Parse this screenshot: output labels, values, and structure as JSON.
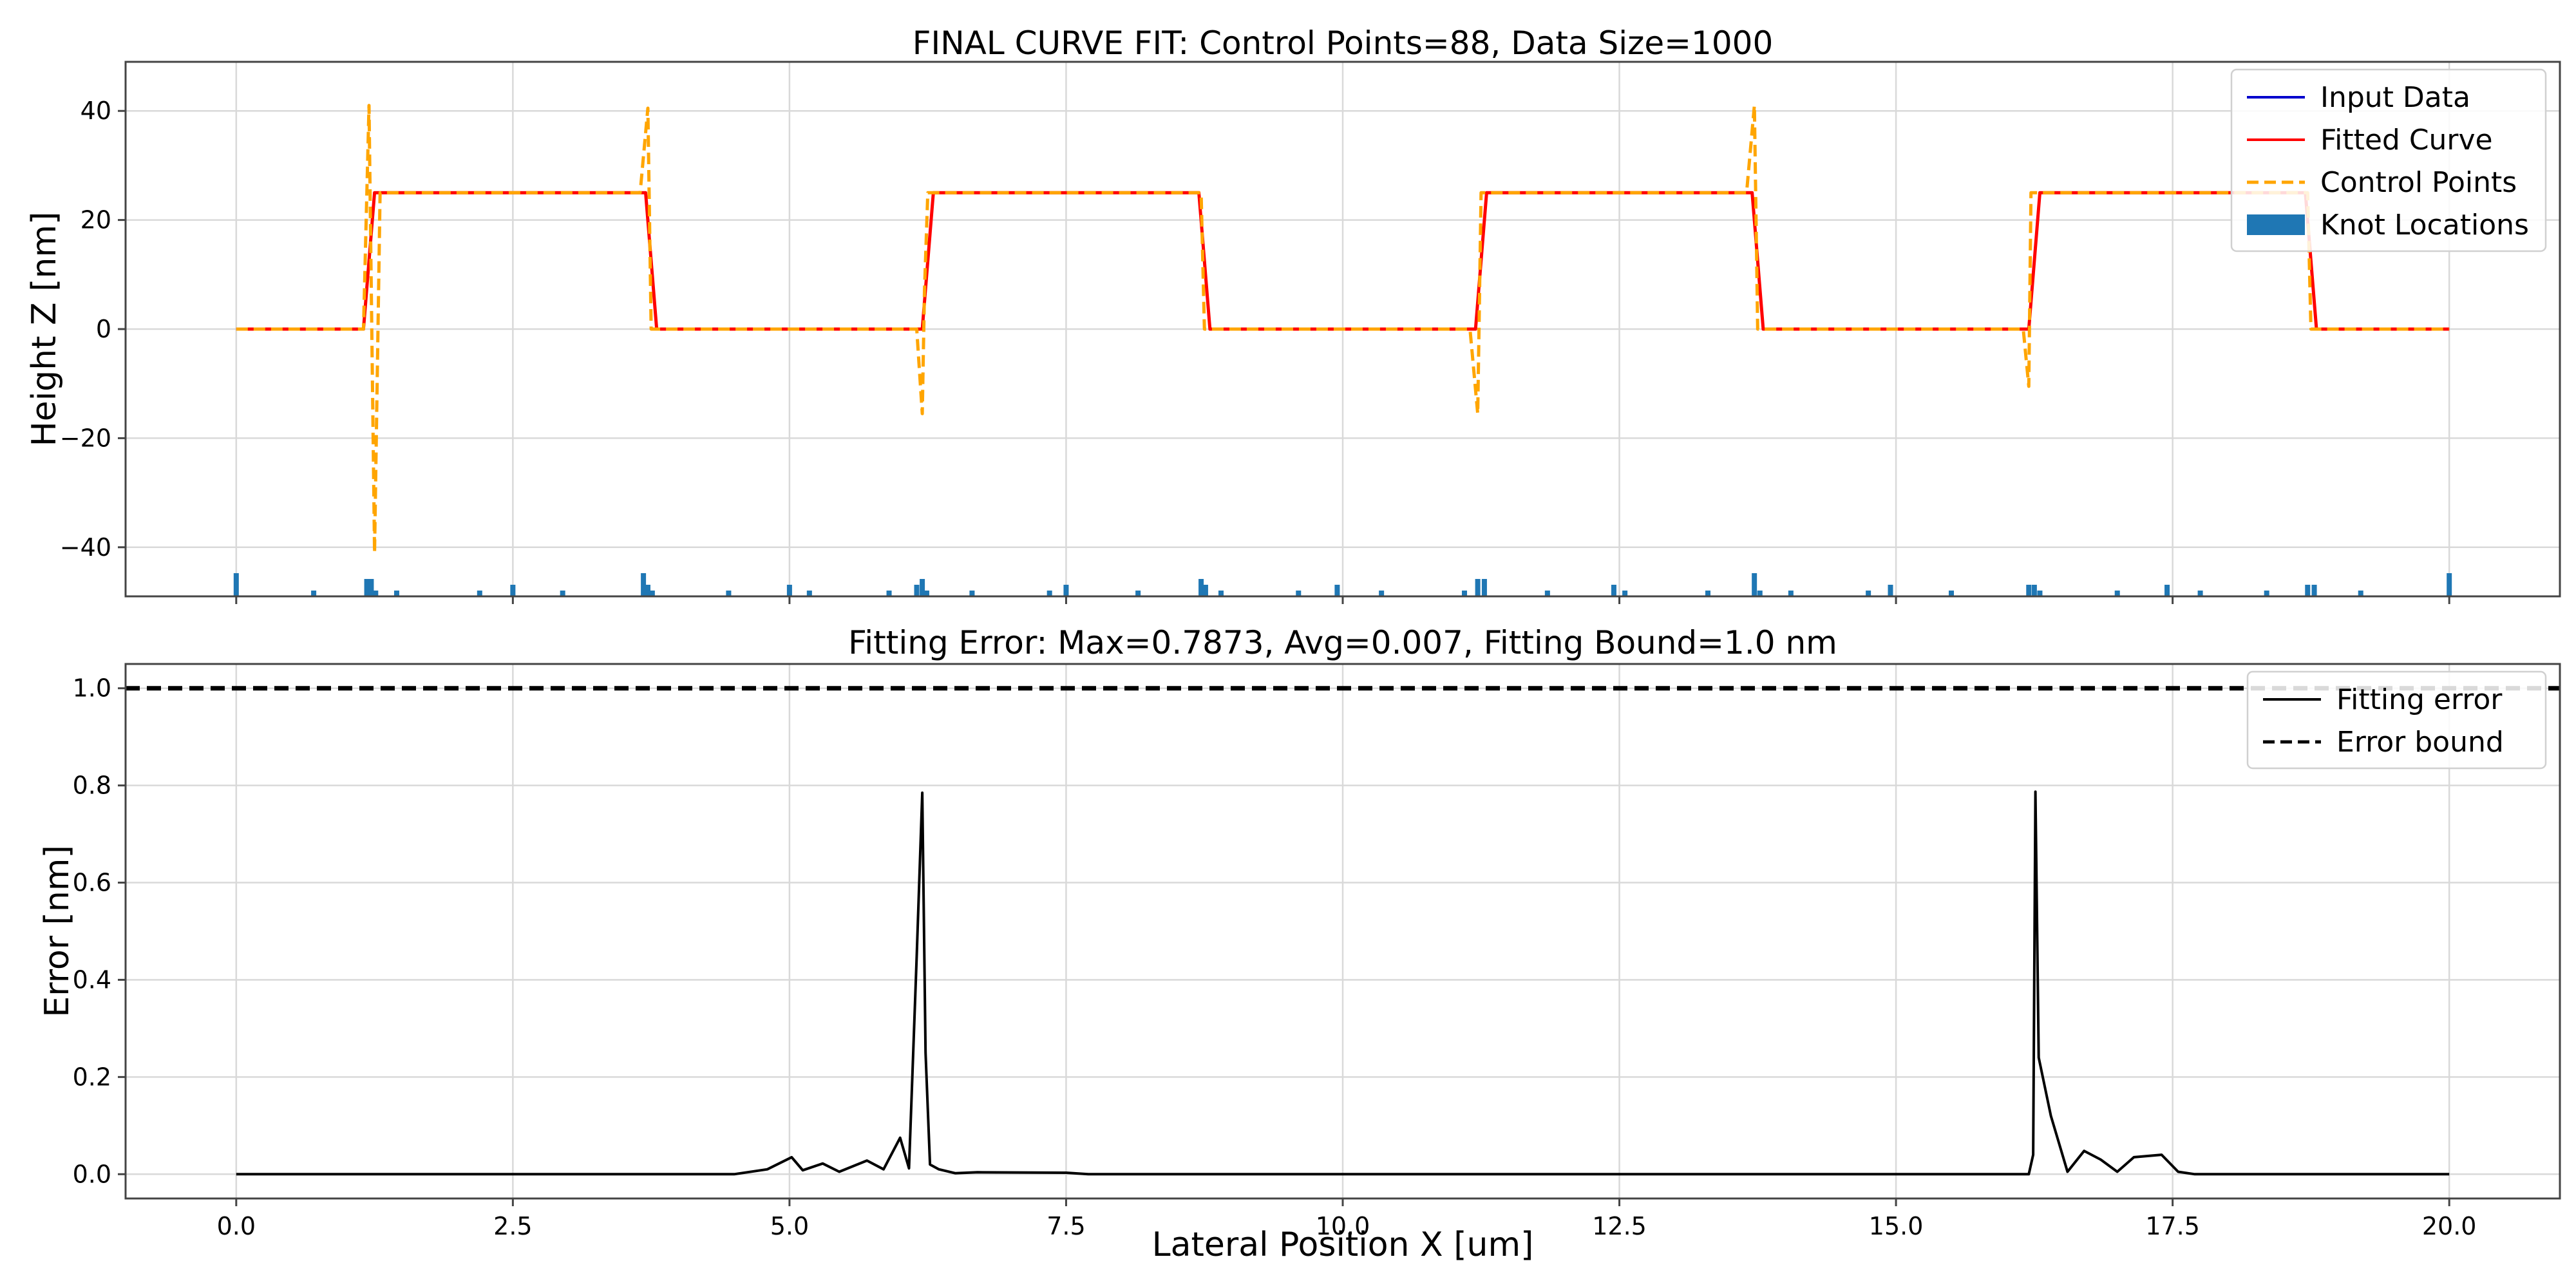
{
  "chart_data": [
    {
      "type": "line",
      "title": "FINAL CURVE FIT: Control Points=88, Data Size=1000",
      "xlabel": "",
      "ylabel": "Height Z [nm]",
      "xlim": [
        -1.0,
        21.0
      ],
      "ylim": [
        -49,
        49
      ],
      "xticks": [
        0.0,
        2.5,
        5.0,
        7.5,
        10.0,
        12.5,
        15.0,
        17.5,
        20.0
      ],
      "yticks": [
        -40,
        -20,
        0,
        20,
        40
      ],
      "ytick_labels": [
        "−40",
        "−20",
        "0",
        "20",
        "40"
      ],
      "grid": true,
      "legend_position": "top-right",
      "series": [
        {
          "name": "Input Data",
          "color": "#0000cd",
          "style": "solid-small-markers",
          "x": [
            0.0,
            1.15,
            1.25,
            3.7,
            3.8,
            6.2,
            6.3,
            8.7,
            8.8,
            11.2,
            11.3,
            13.7,
            13.8,
            16.2,
            16.3,
            18.7,
            18.8,
            20.0
          ],
          "y": [
            0,
            0,
            25,
            25,
            0,
            0,
            25,
            25,
            0,
            0,
            25,
            25,
            0,
            0,
            25,
            25,
            0,
            0
          ]
        },
        {
          "name": "Fitted Curve",
          "color": "#ff0000",
          "style": "solid",
          "x": [
            0.0,
            1.15,
            1.25,
            3.7,
            3.8,
            6.2,
            6.3,
            8.7,
            8.8,
            11.2,
            11.3,
            13.7,
            13.8,
            16.2,
            16.3,
            18.7,
            18.8,
            20.0
          ],
          "y": [
            0,
            0,
            25,
            25,
            0,
            0,
            25,
            25,
            0,
            0,
            25,
            25,
            0,
            0,
            25,
            25,
            0,
            0
          ]
        },
        {
          "name": "Control Points",
          "color": "#ffa500",
          "style": "dashed",
          "x": [
            0.0,
            1.15,
            1.2,
            1.25,
            1.3,
            3.65,
            3.72,
            3.75,
            3.8,
            6.15,
            6.2,
            6.22,
            6.25,
            6.3,
            8.68,
            8.72,
            8.75,
            8.8,
            11.15,
            11.22,
            11.25,
            11.3,
            13.65,
            13.72,
            13.75,
            13.8,
            16.15,
            16.2,
            16.22,
            16.25,
            16.3,
            18.68,
            18.72,
            18.75,
            18.8,
            20.0
          ],
          "y": [
            0,
            0,
            41,
            -41,
            25,
            25,
            40.5,
            0,
            0,
            0,
            -15.5,
            7,
            25,
            25,
            25,
            25,
            0,
            0,
            0,
            -15.5,
            25,
            25,
            25,
            41,
            0,
            0,
            0,
            -10.5,
            25,
            25,
            25,
            25,
            25,
            0,
            0,
            0
          ]
        },
        {
          "name": "Knot Locations",
          "color": "#1f77b4",
          "style": "histogram",
          "x": [
            0.0,
            0.7,
            1.18,
            1.22,
            1.26,
            1.45,
            2.2,
            2.5,
            2.95,
            3.68,
            3.72,
            3.76,
            4.45,
            5.0,
            5.18,
            5.9,
            6.15,
            6.2,
            6.24,
            6.65,
            7.35,
            7.5,
            8.15,
            8.72,
            8.76,
            8.9,
            9.6,
            9.95,
            10.35,
            11.1,
            11.22,
            11.28,
            11.85,
            12.45,
            12.55,
            13.3,
            13.72,
            13.77,
            14.05,
            14.75,
            14.95,
            15.5,
            16.2,
            16.25,
            16.3,
            17.0,
            17.45,
            17.75,
            18.35,
            18.72,
            18.78,
            19.2,
            20.0
          ],
          "y": [
            4,
            1,
            3,
            3,
            1,
            1,
            1,
            2,
            1,
            4,
            2,
            1,
            1,
            2,
            1,
            1,
            2,
            3,
            1,
            1,
            1,
            2,
            1,
            3,
            2,
            1,
            1,
            2,
            1,
            1,
            3,
            3,
            1,
            2,
            1,
            1,
            4,
            1,
            1,
            1,
            2,
            1,
            2,
            2,
            1,
            1,
            2,
            1,
            1,
            2,
            2,
            1,
            4
          ]
        }
      ]
    },
    {
      "type": "line",
      "title": "Fitting Error: Max=0.7873, Avg=0.007, Fitting Bound=1.0 nm",
      "xlabel": "Lateral Position X [um]",
      "ylabel": "Error [nm]",
      "xlim": [
        -1.0,
        21.0
      ],
      "ylim": [
        -0.05,
        1.05
      ],
      "xticks": [
        0.0,
        2.5,
        5.0,
        7.5,
        10.0,
        12.5,
        15.0,
        17.5,
        20.0
      ],
      "yticks": [
        0.0,
        0.2,
        0.4,
        0.6,
        0.8,
        1.0
      ],
      "grid": true,
      "legend_position": "top-right",
      "series": [
        {
          "name": "Fitting error",
          "color": "#000000",
          "style": "solid",
          "x": [
            0.0,
            4.5,
            4.8,
            5.02,
            5.12,
            5.3,
            5.45,
            5.7,
            5.85,
            6.0,
            6.08,
            6.15,
            6.2,
            6.23,
            6.27,
            6.35,
            6.5,
            6.7,
            7.5,
            7.7,
            16.2,
            16.24,
            16.26,
            16.29,
            16.4,
            16.55,
            16.7,
            16.85,
            17.0,
            17.15,
            17.4,
            17.55,
            17.7,
            20.0
          ],
          "y": [
            0.0,
            0.0,
            0.01,
            0.035,
            0.008,
            0.022,
            0.005,
            0.028,
            0.01,
            0.075,
            0.012,
            0.45,
            0.785,
            0.25,
            0.02,
            0.01,
            0.002,
            0.004,
            0.003,
            0.0,
            0.0,
            0.04,
            0.787,
            0.24,
            0.12,
            0.005,
            0.048,
            0.03,
            0.005,
            0.035,
            0.04,
            0.005,
            0.0,
            0.0
          ]
        },
        {
          "name": "Error bound",
          "color": "#000000",
          "style": "dashed",
          "x": [
            -1.0,
            21.0
          ],
          "y": [
            1.0,
            1.0
          ]
        }
      ]
    }
  ]
}
